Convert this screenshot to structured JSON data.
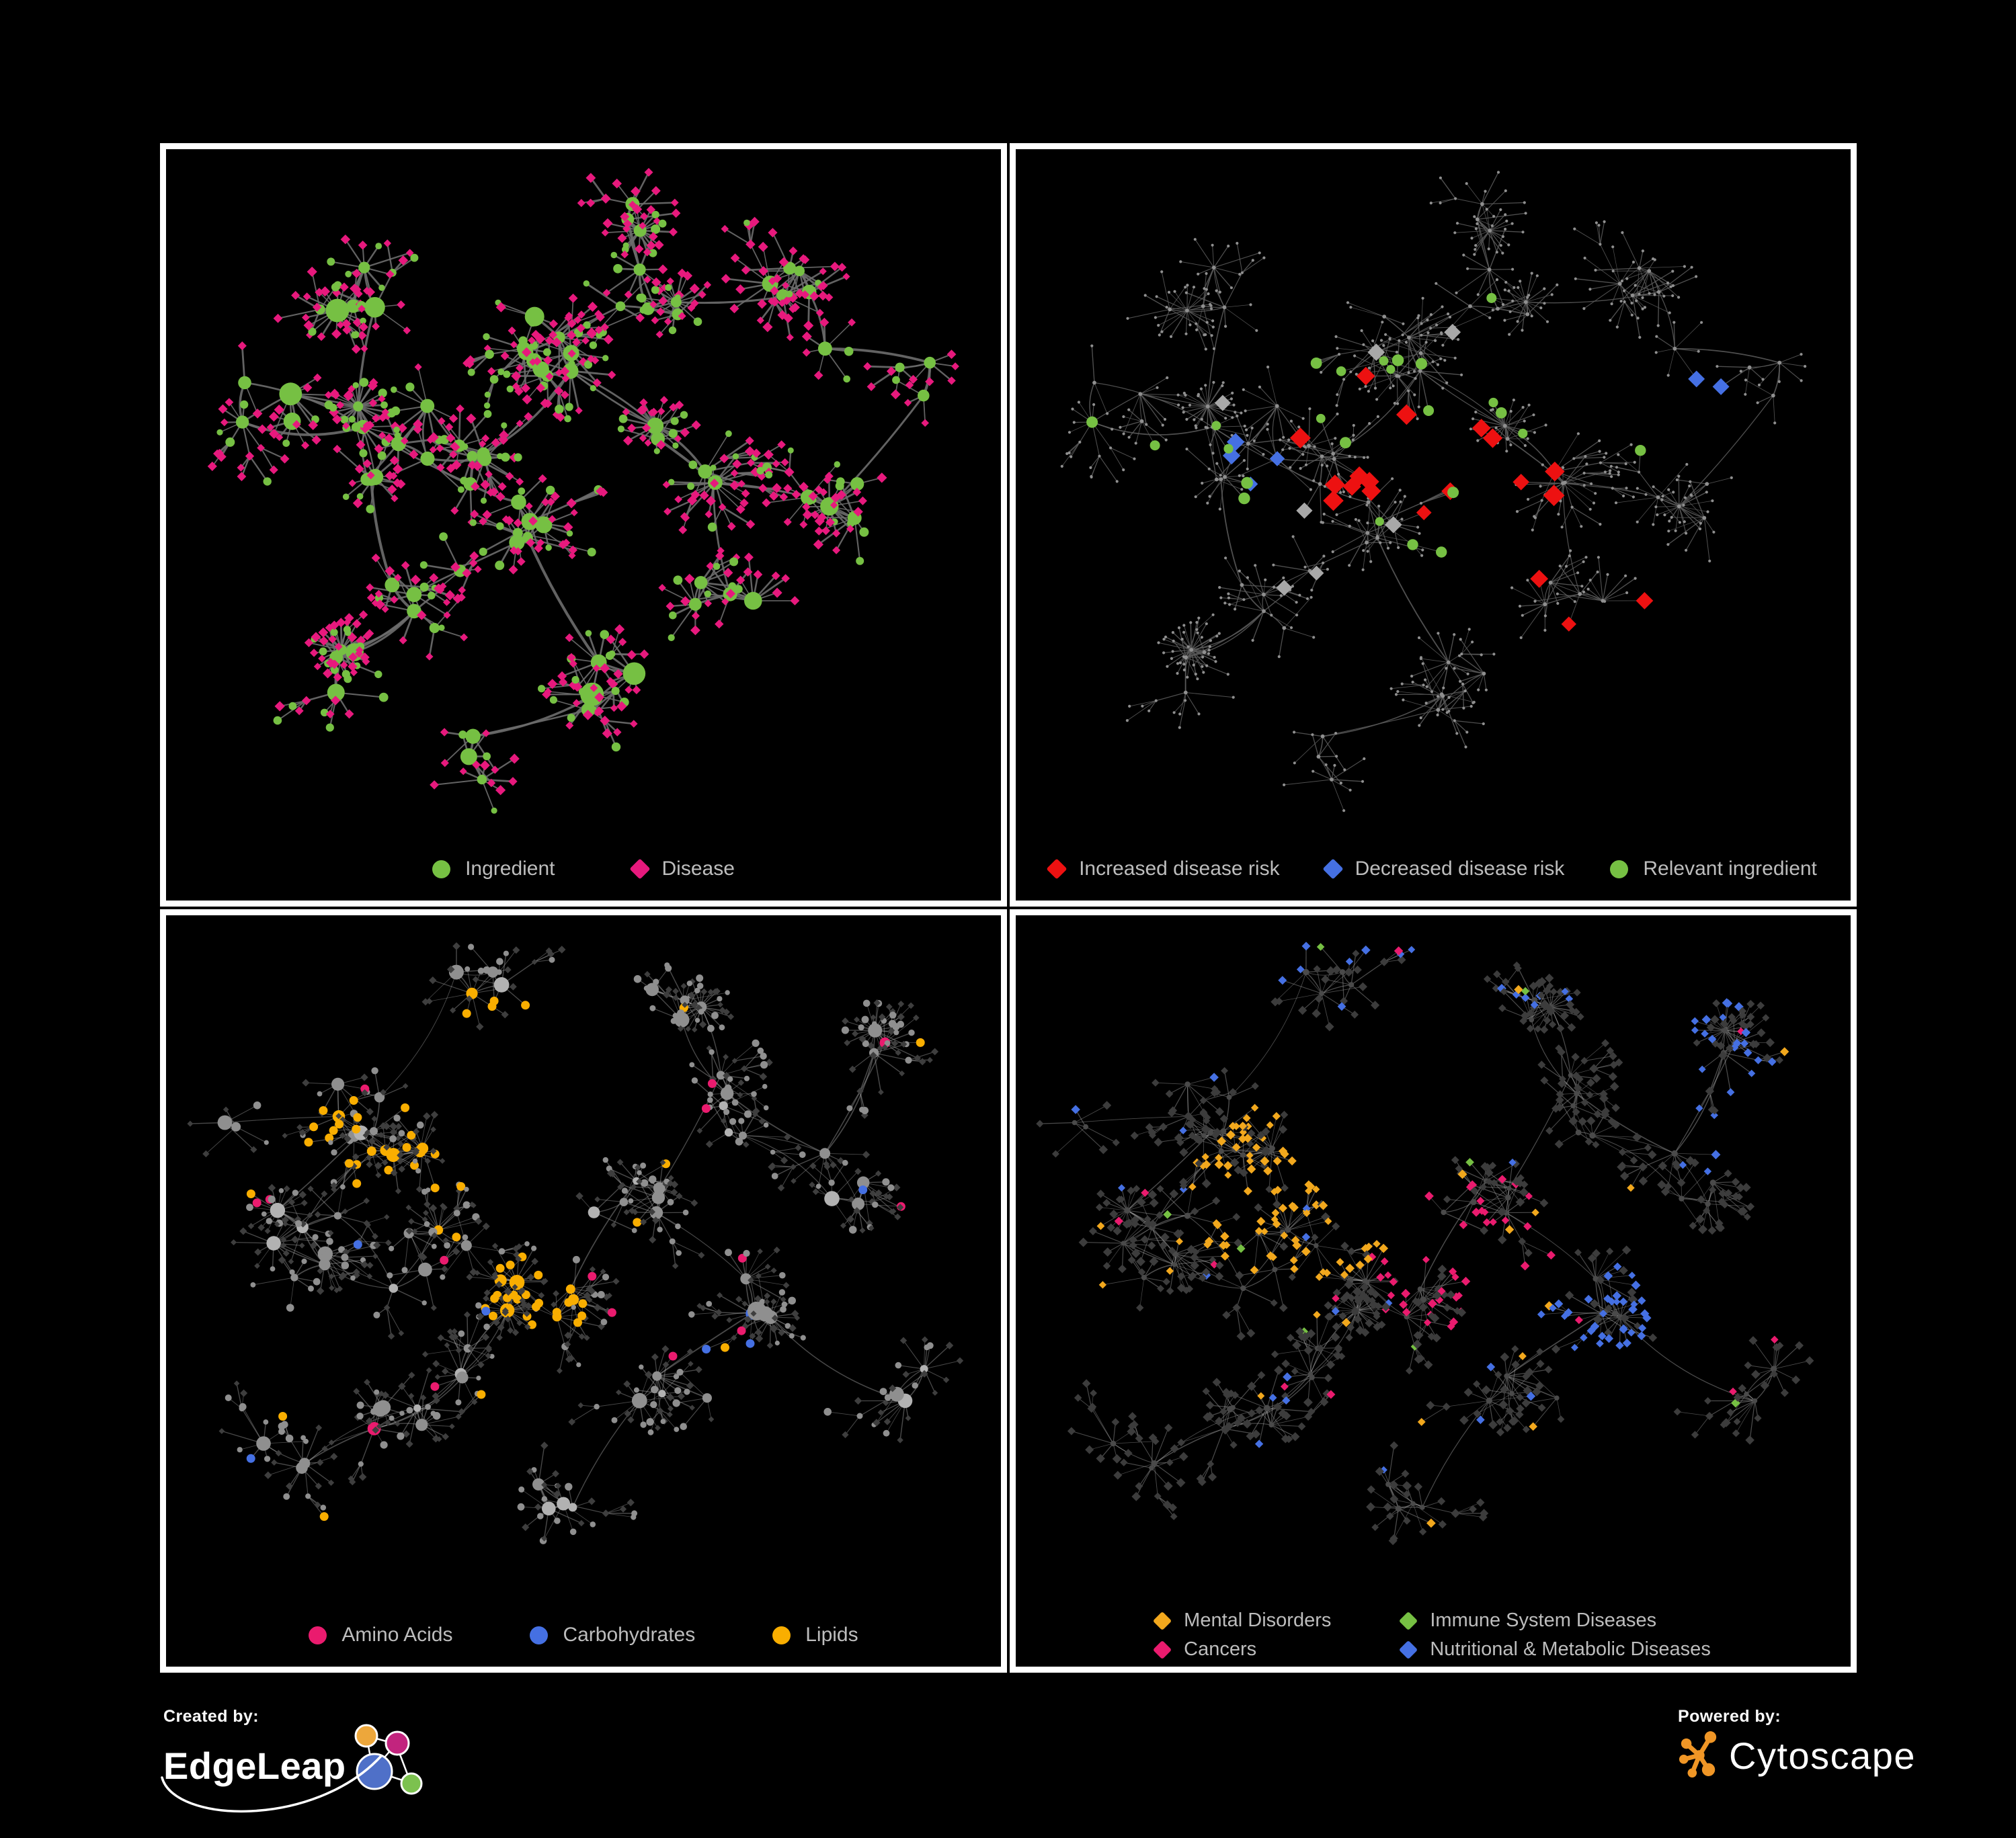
{
  "figure": {
    "background": "#000000",
    "panel_border": "#ffffff"
  },
  "panels": [
    {
      "name": "ingredient-disease-network",
      "legend": [
        {
          "label": "Ingredient",
          "shape": "circle",
          "color": "#76c043"
        },
        {
          "label": "Disease",
          "shape": "diamond",
          "color": "#e7197d"
        }
      ]
    },
    {
      "name": "disease-risk-network",
      "legend": [
        {
          "label": "Increased disease risk",
          "shape": "diamond",
          "color": "#ed1111"
        },
        {
          "label": "Decreased disease risk",
          "shape": "diamond",
          "color": "#4570e3"
        },
        {
          "label": "Relevant ingredient",
          "shape": "circle",
          "color": "#76c043"
        }
      ]
    },
    {
      "name": "nutrient-class-network",
      "legend": [
        {
          "label": "Amino Acids",
          "shape": "circle",
          "color": "#ea1b6e"
        },
        {
          "label": "Carbohydrates",
          "shape": "circle",
          "color": "#4570e3"
        },
        {
          "label": "Lipids",
          "shape": "circle",
          "color": "#f9ae00"
        }
      ]
    },
    {
      "name": "disease-class-network",
      "legend": [
        {
          "label": "Mental Disorders",
          "shape": "diamond",
          "color": "#f2a81d"
        },
        {
          "label": "Immune System Diseases",
          "shape": "diamond",
          "color": "#76c043"
        },
        {
          "label": "Cancers",
          "shape": "diamond",
          "color": "#ea1b6e"
        },
        {
          "label": "Nutritional & Metabolic Diseases",
          "shape": "diamond",
          "color": "#4570e3"
        }
      ]
    }
  ],
  "footer": {
    "created_by": "Created by:",
    "created_brand": "EdgeLeap",
    "powered_by": "Powered by:",
    "powered_brand": "Cytoscape",
    "cytoscape_orange": "#f09626",
    "edgeleap_node_colors": [
      "#eda73b",
      "#c2247e",
      "#4f70c8",
      "#7cc14f"
    ]
  },
  "network": {
    "node_colors": {
      "green": "#76c043",
      "pink": "#e7197d",
      "magenta": "#ea1b6e",
      "red": "#ed1111",
      "blue": "#4570e3",
      "orange": "#f9ae00",
      "amber": "#f2a81d",
      "silver": "#a8a8a8",
      "dim_dot": "#8f8f8f",
      "gray_circle": "#b2b2b2",
      "dark_diamond": "#3e3e3e",
      "dark_hub": "#4a4a4a"
    },
    "graph_a": {
      "seed": 101,
      "extra": 14,
      "leaf_min": 2,
      "leaf_max": 10,
      "dist": 0.034,
      "branch": 0.1,
      "burst": 0.06,
      "clusters": [
        [
          0.3,
          0.42,
          0.1,
          13
        ],
        [
          0.44,
          0.3,
          0.07,
          9
        ],
        [
          0.2,
          0.17,
          0.07,
          5
        ],
        [
          0.1,
          0.36,
          0.05,
          4
        ],
        [
          0.6,
          0.2,
          0.06,
          5
        ],
        [
          0.78,
          0.22,
          0.07,
          6
        ],
        [
          0.92,
          0.33,
          0.04,
          3
        ],
        [
          0.83,
          0.52,
          0.05,
          4
        ],
        [
          0.62,
          0.45,
          0.06,
          5
        ],
        [
          0.47,
          0.55,
          0.07,
          6
        ],
        [
          0.3,
          0.65,
          0.06,
          5
        ],
        [
          0.52,
          0.78,
          0.05,
          5
        ],
        [
          0.22,
          0.78,
          0.05,
          4
        ],
        [
          0.38,
          0.9,
          0.04,
          3
        ],
        [
          0.67,
          0.65,
          0.05,
          4
        ],
        [
          0.57,
          0.07,
          0.04,
          3
        ]
      ]
    },
    "graph_b": {
      "seed": 202,
      "extra": 16,
      "leaf_min": 3,
      "leaf_max": 11,
      "dist": 0.032,
      "branch": 0.12,
      "burst": 0.08,
      "clusters": [
        [
          0.24,
          0.28,
          0.08,
          11
        ],
        [
          0.15,
          0.47,
          0.06,
          7
        ],
        [
          0.3,
          0.5,
          0.06,
          6
        ],
        [
          0.44,
          0.55,
          0.05,
          7
        ],
        [
          0.38,
          0.66,
          0.04,
          3
        ],
        [
          0.56,
          0.43,
          0.06,
          6
        ],
        [
          0.68,
          0.28,
          0.06,
          5
        ],
        [
          0.83,
          0.38,
          0.05,
          4
        ],
        [
          0.74,
          0.55,
          0.05,
          5
        ],
        [
          0.61,
          0.7,
          0.05,
          4
        ],
        [
          0.46,
          0.86,
          0.04,
          4
        ],
        [
          0.26,
          0.76,
          0.05,
          5
        ],
        [
          0.12,
          0.8,
          0.04,
          3
        ],
        [
          0.6,
          0.12,
          0.05,
          4
        ],
        [
          0.35,
          0.1,
          0.05,
          4
        ],
        [
          0.88,
          0.18,
          0.04,
          3
        ],
        [
          0.9,
          0.68,
          0.04,
          3
        ],
        [
          0.05,
          0.3,
          0.03,
          2
        ]
      ]
    },
    "edge_styles": {
      "p1": {
        "color": "#6d6d6d",
        "opacity": 0.9,
        "hub_w": 3.0,
        "leaf_w": 2.1
      },
      "p2": {
        "color": "#5c5c5c",
        "opacity": 0.85,
        "hub_w": 1.35,
        "leaf_w": 1.05
      },
      "p3": {
        "color": "#b4b4b4",
        "opacity": 0.4,
        "hub_w": 1.35,
        "leaf_w": 1.1
      },
      "p4": {
        "color": "#b4b4b4",
        "opacity": 0.42,
        "hub_w": 1.15,
        "leaf_w": 0.95
      }
    },
    "p2_highlights": [
      {
        "color": "#ed1111",
        "shape": "diamond",
        "zone": [
          0.52,
          0.44,
          0.19,
          0.15
        ],
        "prob": 0.1,
        "max": 26,
        "size": [
          11,
          16
        ]
      },
      {
        "color": "#ed1111",
        "shape": "diamond",
        "anchors": [
          [
            0.77,
            0.82
          ],
          [
            0.82,
            0.87
          ],
          [
            0.63,
            0.6
          ]
        ],
        "size": [
          11,
          14
        ]
      },
      {
        "color": "#4570e3",
        "shape": "diamond",
        "zone": [
          0.28,
          0.48,
          0.07,
          0.08
        ],
        "prob": 0.35,
        "max": 4,
        "size": [
          11,
          14
        ]
      },
      {
        "color": "#4570e3",
        "shape": "diamond",
        "anchors": [
          [
            0.825,
            0.37
          ],
          [
            0.85,
            0.37
          ]
        ],
        "size": [
          12,
          13
        ]
      },
      {
        "color": "#a8a8a8",
        "shape": "diamond",
        "zone": [
          0.44,
          0.48,
          0.25,
          0.25
        ],
        "prob": 0.032,
        "max": 8,
        "size": [
          10,
          13
        ]
      },
      {
        "color": "#76c043",
        "shape": "circle",
        "zone": [
          0.42,
          0.42,
          0.28,
          0.26
        ],
        "prob": 0.08,
        "max": 22,
        "size": [
          6.5,
          9
        ]
      },
      {
        "color": "#76c043",
        "shape": "circle",
        "anchors": [
          [
            0.8,
            0.41
          ],
          [
            0.07,
            0.4
          ]
        ],
        "size": [
          8,
          9
        ]
      }
    ],
    "p3_rules": [
      {
        "color": "#f9ae00",
        "zone": [
          0.3,
          0.24,
          0.18,
          0.18
        ],
        "prob": 0.55
      },
      {
        "color": "#f9ae00",
        "zone": [
          0.44,
          0.56,
          0.07,
          0.07
        ],
        "prob": 0.85
      },
      {
        "color": "#f9ae00",
        "prob": 0.03
      },
      {
        "color": "#4570e3",
        "zone": [
          0.28,
          0.22,
          0.12,
          0.12
        ],
        "prob": 0.18
      },
      {
        "color": "#4570e3",
        "zone": [
          0.69,
          0.61,
          0.05,
          0.05
        ],
        "prob": 0.5
      },
      {
        "color": "#4570e3",
        "prob": 0.012
      },
      {
        "color": "#ea1b6e",
        "prob": 0.06,
        "max": 15
      }
    ],
    "p4_rules": [
      {
        "color": "#f2a81d",
        "zone": [
          0.33,
          0.4,
          0.14,
          0.16
        ],
        "prob": 0.7
      },
      {
        "color": "#f2a81d",
        "prob": 0.02
      },
      {
        "color": "#ea1b6e",
        "zone": [
          0.92,
          0.3,
          0.05,
          0.05
        ],
        "prob": 0.5
      },
      {
        "color": "#ea1b6e",
        "zone": [
          0.54,
          0.49,
          0.13,
          0.12
        ],
        "prob": 0.5
      },
      {
        "color": "#ea1b6e",
        "prob": 0.025
      },
      {
        "color": "#4570e3",
        "zone": [
          0.7,
          0.58,
          0.08,
          0.08
        ],
        "prob": 0.6
      },
      {
        "color": "#4570e3",
        "zone": [
          0.85,
          0.24,
          0.11,
          0.13
        ],
        "prob": 0.42
      },
      {
        "color": "#4570e3",
        "zone": [
          0.5,
          0.05,
          0.45,
          0.08
        ],
        "prob": 0.25
      },
      {
        "color": "#4570e3",
        "prob": 0.045
      },
      {
        "color": "#76c043",
        "prob": 0.016
      }
    ]
  }
}
